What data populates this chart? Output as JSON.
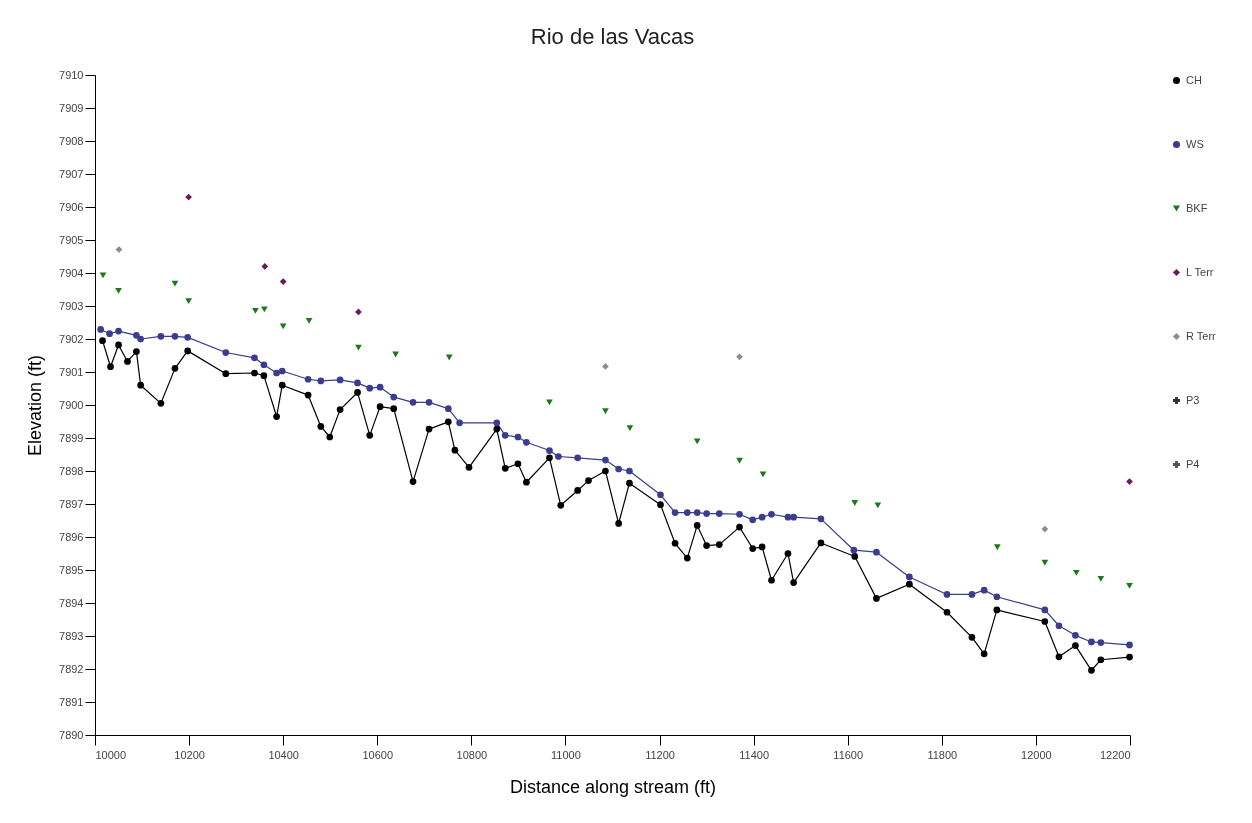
{
  "chart_data": {
    "type": "scatter",
    "title": "Rio de las Vacas",
    "xlabel": "Distance along stream (ft)",
    "ylabel": "Elevation (ft)",
    "xlim": [
      10000,
      12200
    ],
    "xticks": [
      10000,
      10200,
      10400,
      10600,
      10800,
      11000,
      11200,
      11400,
      11600,
      11800,
      12000,
      12200
    ],
    "ylim": [
      7890,
      7910
    ],
    "yticks": [
      7890,
      7891,
      7892,
      7893,
      7894,
      7895,
      7896,
      7897,
      7898,
      7899,
      7900,
      7901,
      7902,
      7903,
      7904,
      7905,
      7906,
      7907,
      7908,
      7909,
      7910
    ],
    "legend": "right",
    "grid": false,
    "series": [
      {
        "name": "CH",
        "type": "line",
        "marker": "circle",
        "color": "#000000",
        "x": [
          10016,
          10033,
          10050,
          10069,
          10088,
          10097,
          10140,
          10170,
          10197,
          10278,
          10339,
          10359,
          10386,
          10398,
          10453,
          10480,
          10499,
          10521,
          10558,
          10584,
          10606,
          10635,
          10676,
          10710,
          10751,
          10765,
          10795,
          10854,
          10872,
          10899,
          10917,
          10966,
          10990,
          11026,
          11049,
          11085,
          11113,
          11136,
          11202,
          11233,
          11259,
          11280,
          11300,
          11327,
          11370,
          11398,
          11418,
          11438,
          11473,
          11485,
          11543,
          11615,
          11661,
          11731,
          11811,
          11864,
          11890,
          11917,
          12019,
          12049,
          12084,
          12118,
          12138,
          12199
        ],
        "values": [
          7901.95,
          7901.16,
          7901.82,
          7901.32,
          7901.62,
          7900.6,
          7900.05,
          7901.11,
          7901.64,
          7900.95,
          7900.97,
          7900.89,
          7899.65,
          7900.6,
          7900.3,
          7899.35,
          7899.03,
          7899.86,
          7900.38,
          7899.08,
          7899.95,
          7899.89,
          7897.68,
          7899.27,
          7899.49,
          7898.63,
          7898.11,
          7899.27,
          7898.08,
          7898.22,
          7897.66,
          7898.4,
          7896.96,
          7897.41,
          7897.71,
          7898.0,
          7896.41,
          7897.63,
          7896.98,
          7895.81,
          7895.36,
          7896.35,
          7895.74,
          7895.77,
          7896.3,
          7895.65,
          7895.7,
          7894.69,
          7895.5,
          7894.62,
          7895.82,
          7895.41,
          7894.14,
          7894.57,
          7893.72,
          7892.96,
          7892.46,
          7893.79,
          7893.44,
          7892.37,
          7892.71,
          7891.96,
          7892.28,
          7892.36
        ]
      },
      {
        "name": "WS",
        "type": "line",
        "marker": "circle",
        "color": "#3b3b8f",
        "x": [
          10012,
          10031,
          10050,
          10088,
          10097,
          10140,
          10170,
          10197,
          10278,
          10339,
          10359,
          10386,
          10398,
          10453,
          10480,
          10521,
          10558,
          10584,
          10606,
          10635,
          10676,
          10710,
          10751,
          10775,
          10854,
          10872,
          10899,
          10917,
          10966,
          10985,
          11026,
          11085,
          11113,
          11136,
          11202,
          11233,
          11259,
          11280,
          11300,
          11327,
          11370,
          11398,
          11418,
          11438,
          11473,
          11485,
          11543,
          11613,
          11661,
          11731,
          11811,
          11864,
          11890,
          11917,
          12019,
          12049,
          12084,
          12118,
          12138,
          12199
        ],
        "values": [
          7902.29,
          7902.16,
          7902.24,
          7902.11,
          7902.0,
          7902.08,
          7902.08,
          7902.05,
          7901.59,
          7901.43,
          7901.22,
          7900.97,
          7901.03,
          7900.78,
          7900.73,
          7900.76,
          7900.67,
          7900.51,
          7900.54,
          7900.24,
          7900.08,
          7900.08,
          7899.89,
          7899.46,
          7899.46,
          7899.08,
          7899.03,
          7898.87,
          7898.62,
          7898.44,
          7898.4,
          7898.33,
          7898.06,
          7898.0,
          7897.28,
          7896.74,
          7896.74,
          7896.74,
          7896.71,
          7896.71,
          7896.69,
          7896.52,
          7896.6,
          7896.69,
          7896.6,
          7896.6,
          7896.55,
          7895.6,
          7895.54,
          7894.79,
          7894.26,
          7894.26,
          7894.39,
          7894.19,
          7893.79,
          7893.31,
          7893.02,
          7892.82,
          7892.8,
          7892.73
        ]
      },
      {
        "name": "BKF",
        "marker": "triangle",
        "color": "#1a7a1a",
        "x": [
          10017,
          10050,
          10170,
          10199,
          10341,
          10360,
          10400,
          10455,
          10560,
          10639,
          10753,
          10966,
          11085,
          11137,
          11280,
          11370,
          11420,
          11615,
          11664,
          11918,
          12019,
          12086,
          12138,
          12199
        ],
        "values": [
          7903.93,
          7903.46,
          7903.68,
          7903.15,
          7902.85,
          7902.9,
          7902.38,
          7902.55,
          7901.74,
          7901.53,
          7901.44,
          7900.08,
          7899.81,
          7899.3,
          7898.9,
          7898.31,
          7897.9,
          7897.03,
          7896.96,
          7895.69,
          7895.22,
          7894.91,
          7894.73,
          7894.52
        ]
      },
      {
        "name": "L Terr",
        "marker": "diamond",
        "color": "#6b1a5a",
        "x": [
          10199,
          10361,
          10400,
          10560,
          12199
        ],
        "values": [
          7906.3,
          7904.2,
          7903.74,
          7902.82,
          7897.68
        ]
      },
      {
        "name": "R Terr",
        "marker": "diamond",
        "color": "#8c8c8c",
        "x": [
          10051,
          11085,
          11370,
          12019
        ],
        "values": [
          7904.71,
          7901.17,
          7901.46,
          7896.24
        ]
      },
      {
        "name": "P3",
        "marker": "cross",
        "color": "#333333"
      },
      {
        "name": "P4",
        "marker": "cross",
        "color": "#555555"
      }
    ]
  }
}
